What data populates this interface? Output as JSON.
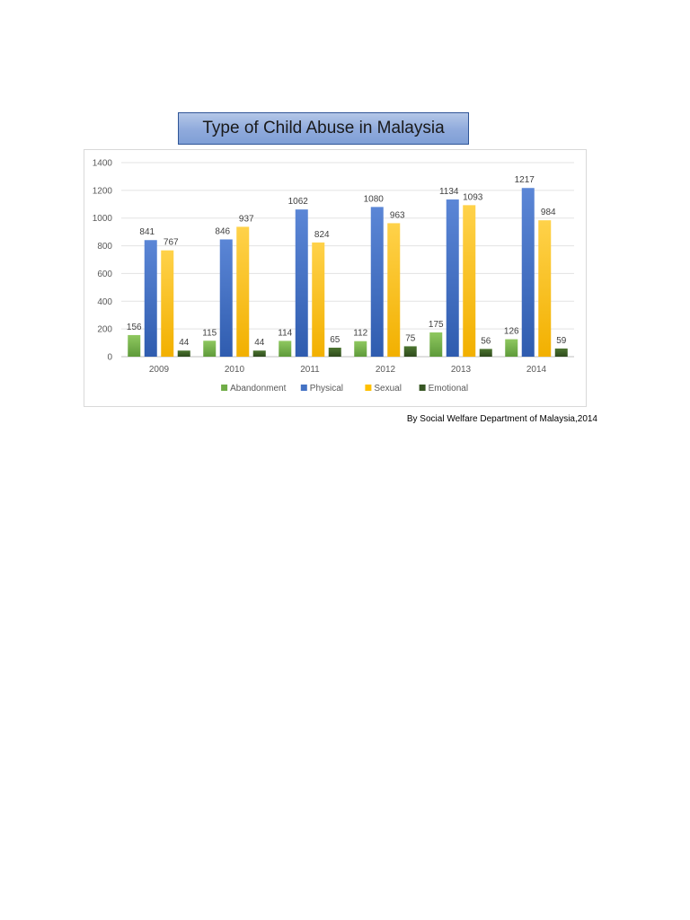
{
  "chart_title": "Type of Child Abuse in Malaysia",
  "source_note": "By Social Welfare Department of Malaysia,2014",
  "chart_data": {
    "type": "bar",
    "title": "Type of Child Abuse in Malaysia",
    "categories": [
      "2009",
      "2010",
      "2011",
      "2012",
      "2013",
      "2014"
    ],
    "series": [
      {
        "name": "Abandonment",
        "color": "#70ad47",
        "values": [
          156,
          115,
          114,
          112,
          175,
          126
        ]
      },
      {
        "name": "Physical",
        "color": "#4472c4",
        "values": [
          841,
          846,
          1062,
          1080,
          1134,
          1217
        ]
      },
      {
        "name": "Sexual",
        "color": "#ffc000",
        "values": [
          767,
          937,
          824,
          963,
          1093,
          984
        ]
      },
      {
        "name": "Emotional",
        "color": "#375623",
        "values": [
          44,
          44,
          65,
          75,
          56,
          59
        ]
      }
    ],
    "ylim": [
      0,
      1400
    ],
    "yticks": [
      0,
      200,
      400,
      600,
      800,
      1000,
      1200,
      1400
    ],
    "grid": true,
    "legend": "bottom",
    "data_labels": true
  }
}
